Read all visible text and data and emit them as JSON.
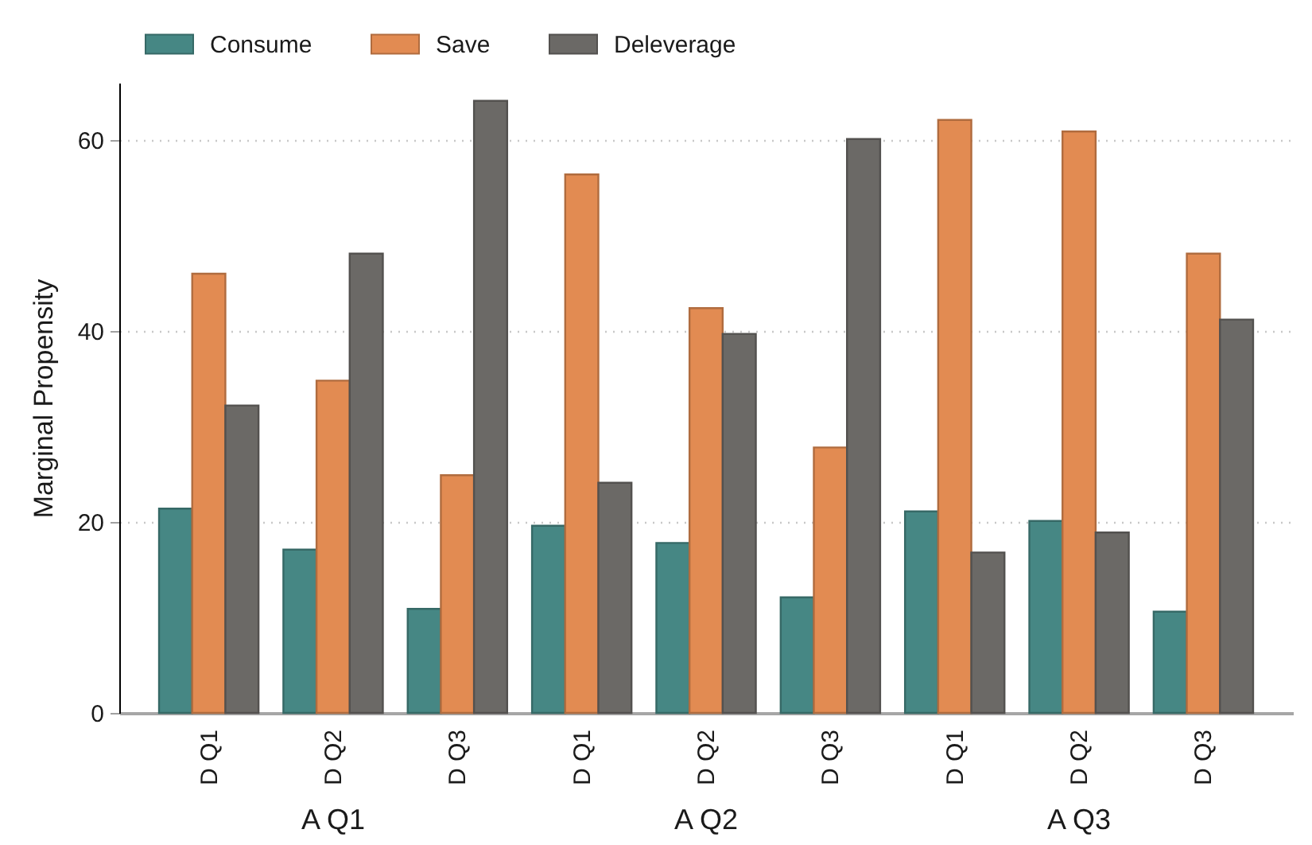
{
  "chart_data": {
    "type": "bar",
    "ylabel": "Marginal Propensity",
    "categories": [
      "D Q1",
      "D Q2",
      "D Q3",
      "D Q1",
      "D Q2",
      "D Q3",
      "D Q1",
      "D Q2",
      "D Q3"
    ],
    "series": [
      {
        "name": "Consume",
        "color": "#468784",
        "values": [
          21.4,
          17.1,
          10.9,
          19.6,
          17.8,
          12.1,
          21.1,
          20.1,
          10.6
        ]
      },
      {
        "name": "Save",
        "color": "#e28b52",
        "values": [
          46.0,
          34.8,
          24.9,
          56.4,
          42.4,
          27.8,
          62.1,
          60.9,
          48.1
        ]
      },
      {
        "name": "Deleverage",
        "color": "#6b6966",
        "values": [
          32.2,
          48.1,
          64.1,
          24.1,
          39.7,
          60.1,
          16.8,
          18.9,
          41.2
        ]
      }
    ],
    "annotations": [
      "A Q1",
      "A Q2",
      "A Q3"
    ],
    "ylim": [
      0,
      66
    ],
    "yticks": [
      0,
      20,
      40,
      60
    ],
    "grid": "y",
    "legend": "top"
  }
}
